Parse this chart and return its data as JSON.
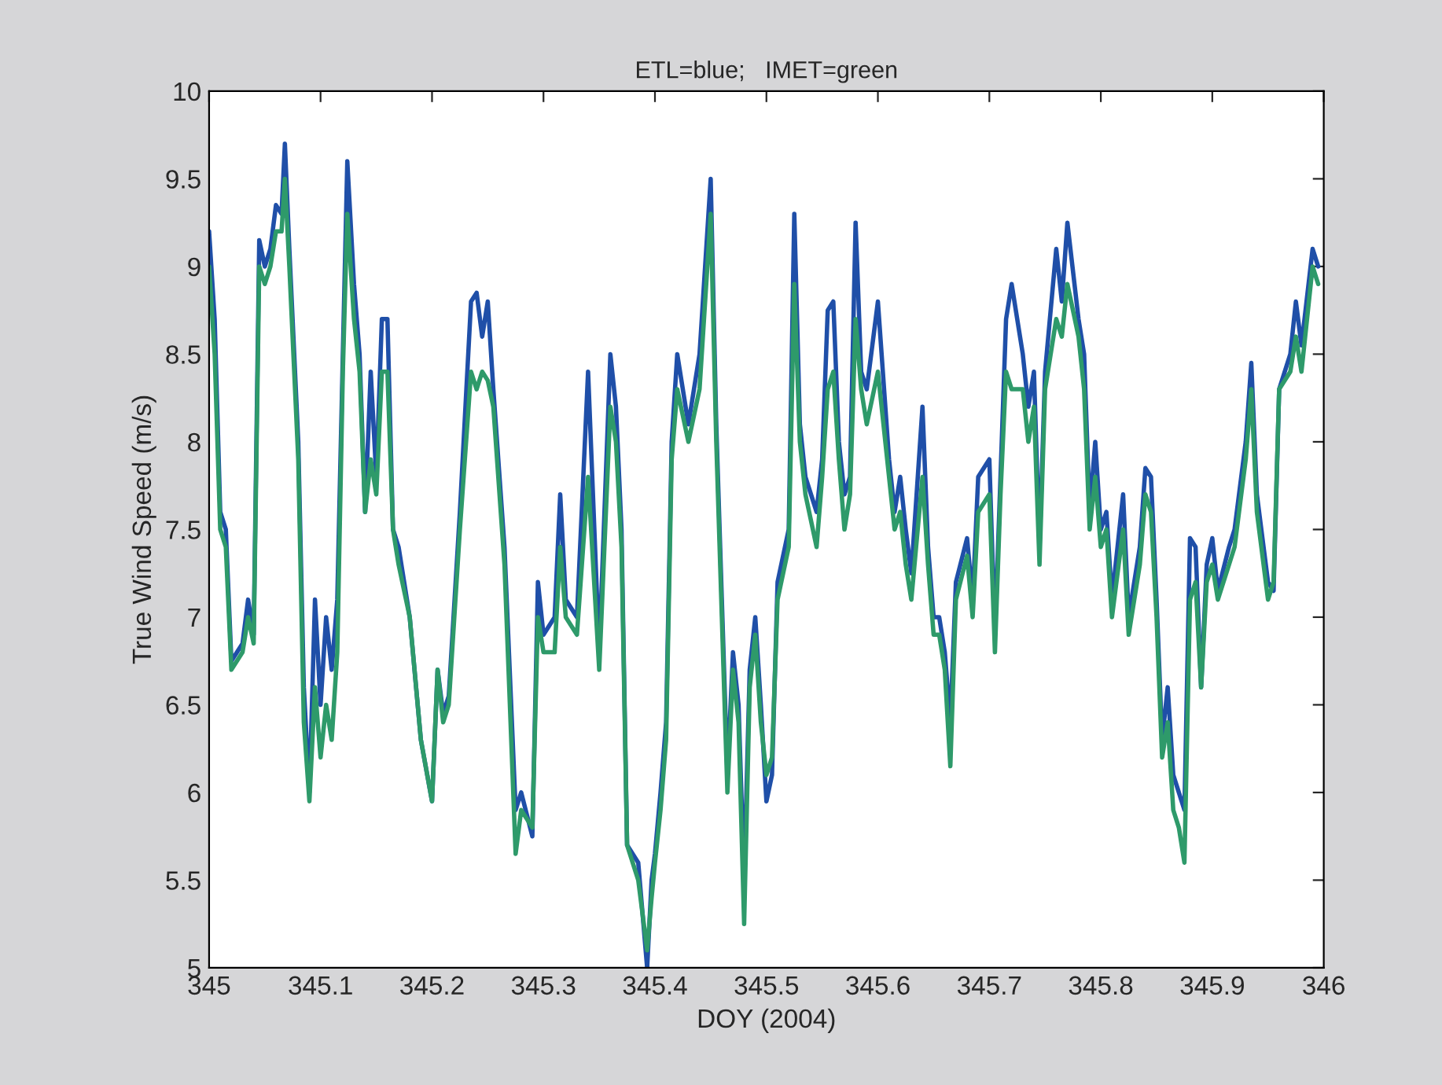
{
  "chart_data": {
    "type": "line",
    "title": "ETL=blue;   IMET=green",
    "xlabel": "DOY (2004)",
    "ylabel": "True Wind Speed (m/s)",
    "xlim": [
      345,
      346
    ],
    "xticks": [
      345,
      345.1,
      345.2,
      345.3,
      345.4,
      345.5,
      345.6,
      345.7,
      345.8,
      345.9,
      346
    ],
    "ylim": [
      5,
      10
    ],
    "yticks": [
      5,
      5.5,
      6,
      6.5,
      7,
      7.5,
      8,
      8.5,
      9,
      9.5,
      10
    ],
    "grid": false,
    "legend": false,
    "x": [
      345.0,
      345.005,
      345.01,
      345.015,
      345.02,
      345.03,
      345.035,
      345.04,
      345.045,
      345.05,
      345.055,
      345.06,
      345.065,
      345.068,
      345.072,
      345.08,
      345.085,
      345.09,
      345.095,
      345.1,
      345.105,
      345.11,
      345.115,
      345.12,
      345.124,
      345.13,
      345.135,
      345.14,
      345.145,
      345.15,
      345.155,
      345.16,
      345.165,
      345.17,
      345.18,
      345.19,
      345.2,
      345.205,
      345.21,
      345.215,
      345.225,
      345.235,
      345.24,
      345.245,
      345.25,
      345.255,
      345.265,
      345.275,
      345.28,
      345.29,
      345.295,
      345.3,
      345.31,
      345.315,
      345.32,
      345.33,
      345.34,
      345.35,
      345.36,
      345.365,
      345.37,
      345.375,
      345.385,
      345.393,
      345.397,
      345.4,
      345.405,
      345.41,
      345.415,
      345.42,
      345.43,
      345.44,
      345.45,
      345.455,
      345.46,
      345.465,
      345.47,
      345.475,
      345.48,
      345.485,
      345.49,
      345.495,
      345.5,
      345.505,
      345.51,
      345.52,
      345.525,
      345.53,
      345.535,
      345.545,
      345.55,
      345.555,
      345.56,
      345.565,
      345.57,
      345.575,
      345.58,
      345.585,
      345.59,
      345.6,
      345.61,
      345.615,
      345.62,
      345.625,
      345.63,
      345.64,
      345.645,
      345.65,
      345.655,
      345.66,
      345.665,
      345.67,
      345.68,
      345.685,
      345.69,
      345.7,
      345.705,
      345.71,
      345.715,
      345.72,
      345.73,
      345.735,
      345.74,
      345.745,
      345.75,
      345.76,
      345.765,
      345.77,
      345.78,
      345.785,
      345.79,
      345.795,
      345.8,
      345.805,
      345.81,
      345.82,
      345.825,
      345.835,
      345.84,
      345.845,
      345.85,
      345.855,
      345.86,
      345.865,
      345.87,
      345.875,
      345.88,
      345.885,
      345.89,
      345.895,
      345.9,
      345.905,
      345.915,
      345.92,
      345.93,
      345.935,
      345.94,
      345.95,
      345.955,
      345.96,
      345.97,
      345.975,
      345.98,
      345.99,
      345.995
    ],
    "series": [
      {
        "color": "#1f4fa8",
        "values": [
          9.2,
          8.7,
          7.6,
          7.5,
          6.75,
          6.85,
          7.1,
          6.9,
          9.15,
          9.0,
          9.1,
          9.35,
          9.3,
          9.7,
          9.1,
          8.0,
          6.6,
          6.0,
          7.1,
          6.5,
          7.0,
          6.7,
          7.1,
          8.5,
          9.6,
          8.9,
          8.5,
          7.6,
          8.4,
          7.8,
          8.7,
          8.7,
          7.5,
          7.4,
          7.0,
          6.3,
          5.95,
          6.7,
          6.45,
          6.55,
          7.6,
          8.8,
          8.85,
          8.6,
          8.8,
          8.3,
          7.4,
          5.9,
          6.0,
          5.75,
          7.2,
          6.9,
          7.0,
          7.7,
          7.1,
          7.0,
          8.4,
          6.8,
          8.5,
          8.2,
          7.5,
          5.7,
          5.6,
          5.0,
          5.5,
          5.65,
          6.0,
          6.4,
          8.0,
          8.5,
          8.1,
          8.5,
          9.5,
          8.1,
          7.1,
          6.1,
          6.8,
          6.5,
          5.5,
          6.7,
          7.0,
          6.5,
          5.95,
          6.1,
          7.2,
          7.5,
          9.3,
          8.1,
          7.8,
          7.6,
          7.9,
          8.75,
          8.8,
          8.0,
          7.7,
          7.8,
          9.25,
          8.4,
          8.3,
          8.8,
          7.9,
          7.6,
          7.8,
          7.5,
          7.25,
          8.2,
          7.4,
          7.0,
          7.0,
          6.8,
          6.4,
          7.2,
          7.45,
          7.1,
          7.8,
          7.9,
          6.9,
          7.8,
          8.7,
          8.9,
          8.5,
          8.2,
          8.4,
          7.4,
          8.4,
          9.1,
          8.8,
          9.25,
          8.7,
          8.5,
          7.6,
          8.0,
          7.5,
          7.6,
          7.1,
          7.7,
          7.0,
          7.4,
          7.85,
          7.8,
          7.1,
          6.3,
          6.6,
          6.1,
          6.0,
          5.9,
          7.45,
          7.4,
          6.6,
          7.3,
          7.45,
          7.15,
          7.4,
          7.5,
          8.0,
          8.45,
          7.7,
          7.2,
          7.15,
          8.3,
          8.5,
          8.8,
          8.55,
          9.1,
          9.0
        ]
      },
      {
        "color": "#2e9a6a",
        "values": [
          9.0,
          8.5,
          7.5,
          7.4,
          6.7,
          6.8,
          7.0,
          6.85,
          9.0,
          8.9,
          9.0,
          9.2,
          9.2,
          9.5,
          9.0,
          7.9,
          6.4,
          5.95,
          6.6,
          6.2,
          6.5,
          6.3,
          6.8,
          8.4,
          9.3,
          8.7,
          8.4,
          7.6,
          7.9,
          7.7,
          8.4,
          8.4,
          7.5,
          7.3,
          7.0,
          6.3,
          5.95,
          6.7,
          6.4,
          6.5,
          7.5,
          8.4,
          8.3,
          8.4,
          8.35,
          8.2,
          7.3,
          5.65,
          5.9,
          5.8,
          7.0,
          6.8,
          6.8,
          7.4,
          7.0,
          6.9,
          7.8,
          6.7,
          8.2,
          8.0,
          7.4,
          5.7,
          5.5,
          5.1,
          5.4,
          5.6,
          5.9,
          6.3,
          7.9,
          8.3,
          8.0,
          8.3,
          9.3,
          8.0,
          7.0,
          6.0,
          6.7,
          6.4,
          5.25,
          6.6,
          6.9,
          6.4,
          6.1,
          6.2,
          7.1,
          7.4,
          8.9,
          8.0,
          7.7,
          7.4,
          7.8,
          8.3,
          8.4,
          7.9,
          7.5,
          7.7,
          8.7,
          8.3,
          8.1,
          8.4,
          7.8,
          7.5,
          7.6,
          7.3,
          7.1,
          7.8,
          7.3,
          6.9,
          6.9,
          6.7,
          6.15,
          7.1,
          7.35,
          7.0,
          7.6,
          7.7,
          6.8,
          7.7,
          8.4,
          8.3,
          8.3,
          8.0,
          8.2,
          7.3,
          8.3,
          8.7,
          8.6,
          8.9,
          8.6,
          8.3,
          7.5,
          7.8,
          7.4,
          7.5,
          7.0,
          7.5,
          6.9,
          7.3,
          7.7,
          7.6,
          7.0,
          6.2,
          6.4,
          5.9,
          5.8,
          5.6,
          7.1,
          7.2,
          6.6,
          7.2,
          7.3,
          7.1,
          7.3,
          7.4,
          7.9,
          8.3,
          7.6,
          7.1,
          7.2,
          8.3,
          8.4,
          8.6,
          8.4,
          9.0,
          8.9
        ]
      }
    ]
  }
}
